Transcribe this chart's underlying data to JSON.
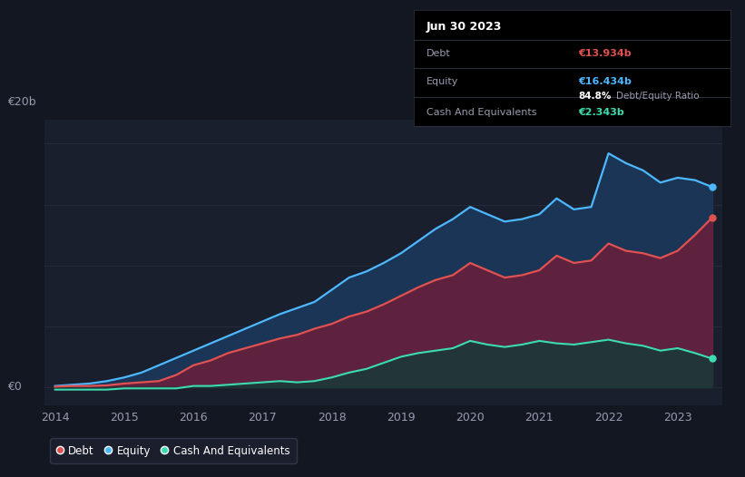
{
  "background_color": "#131722",
  "plot_bg_color": "#1a1f2e",
  "tooltip": {
    "date": "Jun 30 2023",
    "debt_label": "Debt",
    "debt_value": "€13.934b",
    "equity_label": "Equity",
    "equity_value": "€16.434b",
    "ratio_value": "84.8%",
    "ratio_label": "Debt/Equity Ratio",
    "cash_label": "Cash And Equivalents",
    "cash_value": "€2.343b"
  },
  "ylabel": "€20b",
  "y0label": "€0",
  "years": [
    2014.0,
    2014.25,
    2014.5,
    2014.75,
    2015.0,
    2015.25,
    2015.5,
    2015.75,
    2016.0,
    2016.25,
    2016.5,
    2016.75,
    2017.0,
    2017.25,
    2017.5,
    2017.75,
    2018.0,
    2018.25,
    2018.5,
    2018.75,
    2019.0,
    2019.25,
    2019.5,
    2019.75,
    2020.0,
    2020.25,
    2020.5,
    2020.75,
    2021.0,
    2021.25,
    2021.5,
    2021.75,
    2022.0,
    2022.25,
    2022.5,
    2022.75,
    2023.0,
    2023.25,
    2023.5
  ],
  "debt": [
    0.05,
    0.1,
    0.1,
    0.15,
    0.3,
    0.4,
    0.5,
    1.0,
    1.8,
    2.2,
    2.8,
    3.2,
    3.6,
    4.0,
    4.3,
    4.8,
    5.2,
    5.8,
    6.2,
    6.8,
    7.5,
    8.2,
    8.8,
    9.2,
    10.2,
    9.6,
    9.0,
    9.2,
    9.6,
    10.8,
    10.2,
    10.4,
    11.8,
    11.2,
    11.0,
    10.6,
    11.2,
    12.5,
    13.934
  ],
  "equity": [
    0.1,
    0.2,
    0.3,
    0.5,
    0.8,
    1.2,
    1.8,
    2.4,
    3.0,
    3.6,
    4.2,
    4.8,
    5.4,
    6.0,
    6.5,
    7.0,
    8.0,
    9.0,
    9.5,
    10.2,
    11.0,
    12.0,
    13.0,
    13.8,
    14.8,
    14.2,
    13.6,
    13.8,
    14.2,
    15.5,
    14.6,
    14.8,
    19.2,
    18.4,
    17.8,
    16.8,
    17.2,
    17.0,
    16.434
  ],
  "cash": [
    -0.2,
    -0.2,
    -0.2,
    -0.2,
    -0.1,
    -0.1,
    -0.1,
    -0.1,
    0.1,
    0.1,
    0.2,
    0.3,
    0.4,
    0.5,
    0.4,
    0.5,
    0.8,
    1.2,
    1.5,
    2.0,
    2.5,
    2.8,
    3.0,
    3.2,
    3.8,
    3.5,
    3.3,
    3.5,
    3.8,
    3.6,
    3.5,
    3.7,
    3.9,
    3.6,
    3.4,
    3.0,
    3.2,
    2.8,
    2.343
  ],
  "debt_color": "#e05252",
  "equity_color": "#4db8ff",
  "cash_color": "#3ddcb0",
  "debt_fill_color": "#6b1f3a",
  "equity_fill_color": "#1b3a5c",
  "cash_fill_color": "#0f3d35",
  "grid_color": "#2a2d3e",
  "text_color": "#9a9ab0",
  "xlabel_color": "#9a9ab0",
  "xlim": [
    2013.85,
    2023.65
  ],
  "ylim": [
    -1.5,
    22.0
  ],
  "xtick_labels": [
    "2014",
    "2015",
    "2016",
    "2017",
    "2018",
    "2019",
    "2020",
    "2021",
    "2022",
    "2023"
  ],
  "xtick_positions": [
    2014,
    2015,
    2016,
    2017,
    2018,
    2019,
    2020,
    2021,
    2022,
    2023
  ],
  "legend_bg": "#1e2130",
  "legend_edge": "#3a3d50"
}
